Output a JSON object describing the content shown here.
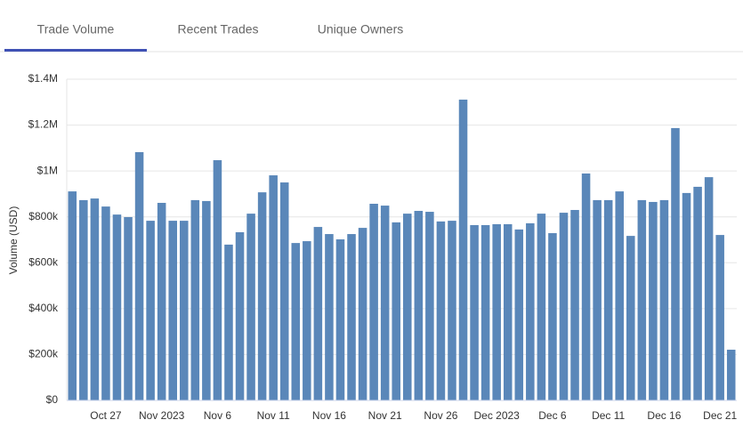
{
  "tabs": [
    "Trade Volume",
    "Recent Trades",
    "Unique Owners"
  ],
  "chart_data": {
    "type": "bar",
    "y_label": "Volume (USD)",
    "color": "#5a87b9",
    "grid": true,
    "categories": [
      null,
      null,
      null,
      "Oct 27",
      null,
      null,
      null,
      null,
      "Nov 2023",
      null,
      null,
      null,
      null,
      "Nov 6",
      null,
      null,
      null,
      null,
      "Nov 11",
      null,
      null,
      null,
      null,
      "Nov 16",
      null,
      null,
      null,
      null,
      "Nov 21",
      null,
      null,
      null,
      null,
      "Nov 26",
      null,
      null,
      null,
      null,
      "Dec 2023",
      null,
      null,
      null,
      null,
      "Dec 6",
      null,
      null,
      null,
      null,
      "Dec 11",
      null,
      null,
      null,
      null,
      "Dec 16",
      null,
      null,
      null,
      null,
      "Dec 21",
      null
    ],
    "values": [
      911000,
      873000,
      880000,
      845000,
      810000,
      799000,
      1082000,
      783000,
      861000,
      783000,
      783000,
      873000,
      869000,
      1047000,
      679000,
      733000,
      814000,
      907000,
      981000,
      950000,
      686000,
      694000,
      756000,
      725000,
      702000,
      725000,
      752000,
      857000,
      849000,
      776000,
      814000,
      826000,
      822000,
      780000,
      783000,
      1311000,
      764000,
      764000,
      768000,
      768000,
      745000,
      772000,
      814000,
      729000,
      818000,
      830000,
      989000,
      873000,
      873000,
      911000,
      717000,
      873000,
      865000,
      873000,
      1187000,
      904000,
      931000,
      973000,
      721000,
      221000
    ],
    "ylim": [
      0,
      1400000
    ],
    "yticks": [
      {
        "value": 0,
        "label": "$0"
      },
      {
        "value": 200000,
        "label": "$200k"
      },
      {
        "value": 400000,
        "label": "$400k"
      },
      {
        "value": 600000,
        "label": "$600k"
      },
      {
        "value": 800000,
        "label": "$800k"
      },
      {
        "value": 1000000,
        "label": "$1M"
      },
      {
        "value": 1200000,
        "label": "$1.2M"
      },
      {
        "value": 1400000,
        "label": "$1.4M"
      }
    ]
  }
}
